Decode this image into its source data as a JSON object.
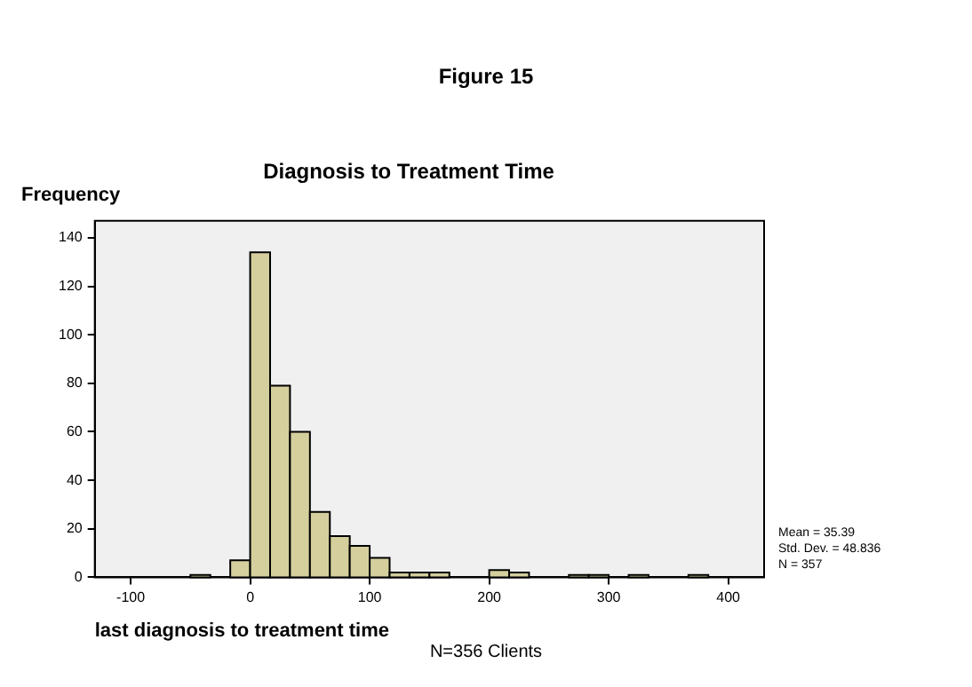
{
  "chart_data": {
    "type": "histogram",
    "title": "Diagnosis to Treatment Time",
    "xlabel": "last diagnosis to treatment time",
    "ylabel": "Frequency",
    "bins": [
      -50,
      -33.33,
      -16.67,
      0,
      16.67,
      33.33,
      50,
      66.67,
      83.33,
      100,
      116.67,
      133.33,
      150,
      166.67,
      183.33,
      200,
      216.67,
      233.33,
      250,
      266.67,
      283.33,
      300,
      316.67,
      333.33,
      350,
      366.67,
      383.33
    ],
    "values": [
      1,
      0,
      7,
      134,
      79,
      60,
      27,
      17,
      13,
      8,
      2,
      2,
      2,
      0,
      0,
      3,
      2,
      0,
      0,
      1,
      1,
      0,
      1,
      0,
      0,
      1
    ],
    "color": "#d4cf9c",
    "xlim": [
      -130,
      430
    ],
    "xticks": [
      -100,
      0,
      100,
      200,
      300,
      400
    ],
    "ylim": [
      0,
      147
    ],
    "yticks": [
      0,
      20,
      40,
      60,
      80,
      100,
      120,
      140
    ],
    "grid": false,
    "legend": false,
    "annotations": [
      "Figure 15",
      "Mean = 35.39",
      "Std. Dev. = 48.836",
      "N = 357",
      "N=356 Clients"
    ]
  }
}
